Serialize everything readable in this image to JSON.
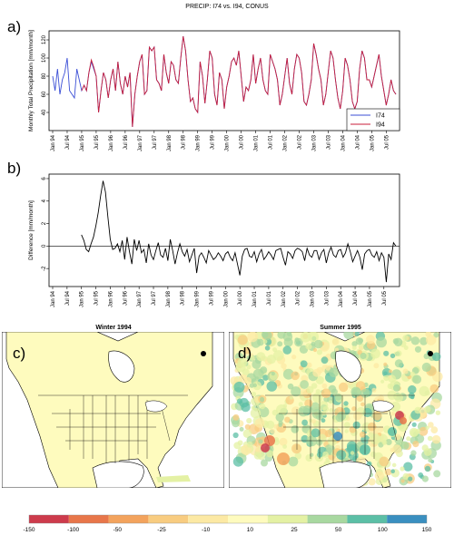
{
  "figure": {
    "title": "PRECIP: I74 vs. I94, CONUS",
    "panel_labels": [
      "a)",
      "b)",
      "c)",
      "d)"
    ],
    "map_titles": [
      "Winter 1994",
      "Summer 1995"
    ]
  },
  "chart_data": [
    {
      "type": "line",
      "ylabel": "Monthly Total Precipitation [mm/month]",
      "ylim": [
        20,
        130
      ],
      "yticks": [
        40,
        60,
        80,
        100,
        120
      ],
      "x_start": "Jan 94",
      "xtick_labels": [
        "Jan 94",
        "Jul 94",
        "Jan 95",
        "Jul 95",
        "Jan 96",
        "Jul 96",
        "Jan 97",
        "Jul 97",
        "Jan 98",
        "Jul 98",
        "Jan 99",
        "Jul 99",
        "Jan 00",
        "Jul 00",
        "Jan 01",
        "Jul 01",
        "Jan 02",
        "Jul 02",
        "Jan 03",
        "Jul 03",
        "Jan 04",
        "Jul 04",
        "Jan 05",
        "Jul 05"
      ],
      "legend": {
        "position": "bottom-right"
      },
      "series": [
        {
          "name": "I74",
          "color": "#3b4fd6",
          "values": [
            80,
            64,
            88,
            60,
            76,
            84,
            100,
            64,
            60,
            56,
            88,
            76,
            64,
            70,
            64,
            84,
            96,
            88,
            80,
            40,
            64,
            84,
            76,
            56,
            76,
            88,
            64,
            96,
            72,
            60,
            80,
            68,
            84,
            24,
            60,
            80,
            96,
            104,
            60,
            64,
            112,
            108,
            112,
            76,
            72,
            64,
            104,
            84,
            72,
            96,
            92,
            76,
            72,
            100,
            124,
            108,
            76,
            52,
            56,
            44,
            40,
            96,
            80,
            50,
            76,
            108,
            100,
            60,
            48,
            84,
            76,
            44,
            68,
            80,
            96,
            100,
            92,
            108,
            80,
            52,
            68,
            64,
            76,
            104,
            72,
            88,
            100,
            76,
            64,
            60,
            104,
            96,
            88,
            76,
            48,
            60,
            80,
            100,
            72,
            60,
            88,
            104,
            100,
            84,
            52,
            48,
            60,
            76,
            116,
            104,
            88,
            76,
            48,
            60,
            84,
            108,
            100,
            76,
            56,
            44,
            64,
            100,
            92,
            76,
            52,
            44,
            52,
            88,
            108,
            100,
            76,
            76,
            68,
            80,
            92,
            104,
            80,
            64,
            48,
            60,
            76,
            64,
            60
          ]
        },
        {
          "name": "I94",
          "color": "#c81e3a",
          "values": [
            null,
            null,
            null,
            null,
            null,
            null,
            null,
            null,
            null,
            null,
            null,
            null,
            64,
            70,
            64,
            84,
            98,
            90,
            80,
            40,
            64,
            84,
            76,
            56,
            76,
            88,
            64,
            96,
            72,
            60,
            80,
            68,
            84,
            24,
            60,
            80,
            96,
            104,
            60,
            64,
            112,
            108,
            112,
            76,
            72,
            64,
            104,
            84,
            72,
            96,
            92,
            76,
            72,
            100,
            124,
            108,
            76,
            52,
            56,
            44,
            40,
            96,
            80,
            50,
            76,
            108,
            100,
            60,
            48,
            84,
            76,
            44,
            68,
            80,
            96,
            100,
            92,
            108,
            80,
            52,
            68,
            64,
            76,
            104,
            72,
            88,
            100,
            76,
            64,
            60,
            104,
            96,
            88,
            76,
            48,
            60,
            80,
            100,
            72,
            60,
            88,
            104,
            100,
            84,
            52,
            48,
            60,
            76,
            116,
            104,
            88,
            76,
            48,
            60,
            84,
            108,
            100,
            76,
            56,
            44,
            64,
            100,
            92,
            76,
            52,
            44,
            52,
            88,
            108,
            100,
            76,
            76,
            68,
            80,
            92,
            104,
            80,
            64,
            48,
            60,
            76,
            64,
            60
          ]
        }
      ]
    },
    {
      "type": "line",
      "ylabel": "Difference [mm/month]",
      "ylim": [
        -3.6,
        6.4
      ],
      "yticks": [
        -2,
        0,
        2,
        4,
        6
      ],
      "x_start": "Jan 94",
      "xtick_labels": [
        "Jan 94",
        "Jul 94",
        "Jan 95",
        "Jul 95",
        "Jan 96",
        "Jul 96",
        "Jan 97",
        "Jul 97",
        "Jan 98",
        "Jul 98",
        "Jan 99",
        "Jul 99",
        "Jan 00",
        "Jul 00",
        "Jan 01",
        "Jul 01",
        "Jan 02",
        "Jul 02",
        "Jan 03",
        "Jul 03",
        "Jan 04",
        "Jul 04",
        "Jan 05",
        "Jul 05"
      ],
      "reference_line": 0,
      "series": [
        {
          "name": "",
          "color": "#000000",
          "values": [
            null,
            null,
            null,
            null,
            null,
            null,
            null,
            null,
            null,
            null,
            null,
            null,
            1.0,
            0.5,
            -0.3,
            -0.5,
            0.2,
            0.8,
            1.8,
            3.0,
            4.5,
            5.8,
            4.8,
            2.6,
            0.6,
            -0.3,
            -0.2,
            0.2,
            -0.5,
            0.5,
            -1.2,
            0.8,
            -0.5,
            -1.6,
            0.6,
            -0.4,
            0.5,
            -0.6,
            -0.3,
            -1.5,
            0.2,
            -0.8,
            -1.2,
            -0.4,
            0.3,
            -0.8,
            -1.0,
            -0.2,
            -1.3,
            0.6,
            -0.4,
            -1.6,
            -0.6,
            0.2,
            -0.5,
            -0.9,
            -0.3,
            -1.4,
            -0.8,
            -0.2,
            -2.4,
            -0.9,
            -0.6,
            -1.0,
            -1.5,
            -0.4,
            -0.8,
            -1.2,
            -1.0,
            -0.6,
            -0.9,
            -1.3,
            -0.7,
            -0.5,
            -1.0,
            -1.3,
            -0.6,
            -1.6,
            -2.6,
            -0.9,
            -0.3,
            -0.2,
            -0.9,
            -1.0,
            -0.5,
            -1.4,
            -0.7,
            -0.3,
            -1.2,
            -0.9,
            -0.5,
            -0.8,
            -1.2,
            -0.4,
            -0.3,
            -0.2,
            -1.0,
            -1.7,
            -0.5,
            -0.7,
            -1.1,
            -0.4,
            -0.2,
            -0.3,
            -0.5,
            -1.3,
            -0.2,
            -0.8,
            -1.0,
            -0.4,
            -0.4,
            -1.2,
            -0.6,
            -0.3,
            -1.5,
            -0.6,
            -0.1,
            -0.8,
            -1.0,
            -0.4,
            -0.3,
            -1.0,
            -0.6,
            0.2,
            -0.5,
            -1.4,
            -0.9,
            -0.4,
            -1.0,
            -2.1,
            -0.7,
            -0.4,
            -0.3,
            -0.8,
            -1.0,
            -0.5,
            -1.3,
            -0.6,
            -1.0,
            -3.2,
            -0.7,
            -1.2,
            0.3,
            0.0
          ]
        }
      ]
    },
    {
      "type": "table",
      "colorbar": {
        "ticks": [
          "-150",
          "-100",
          "-50",
          "-25",
          "-10",
          "10",
          "25",
          "50",
          "100",
          "150"
        ],
        "bins": [
          {
            "color": "#cd3b4c"
          },
          {
            "color": "#e8764a"
          },
          {
            "color": "#f3a35d"
          },
          {
            "color": "#f8cc80"
          },
          {
            "color": "#fce9a4"
          },
          {
            "color": "#fefbbe"
          },
          {
            "color": "#e4f1a4"
          },
          {
            "color": "#a8d8a0"
          },
          {
            "color": "#5cbfa6"
          },
          {
            "color": "#3a8fc0"
          }
        ]
      }
    }
  ]
}
